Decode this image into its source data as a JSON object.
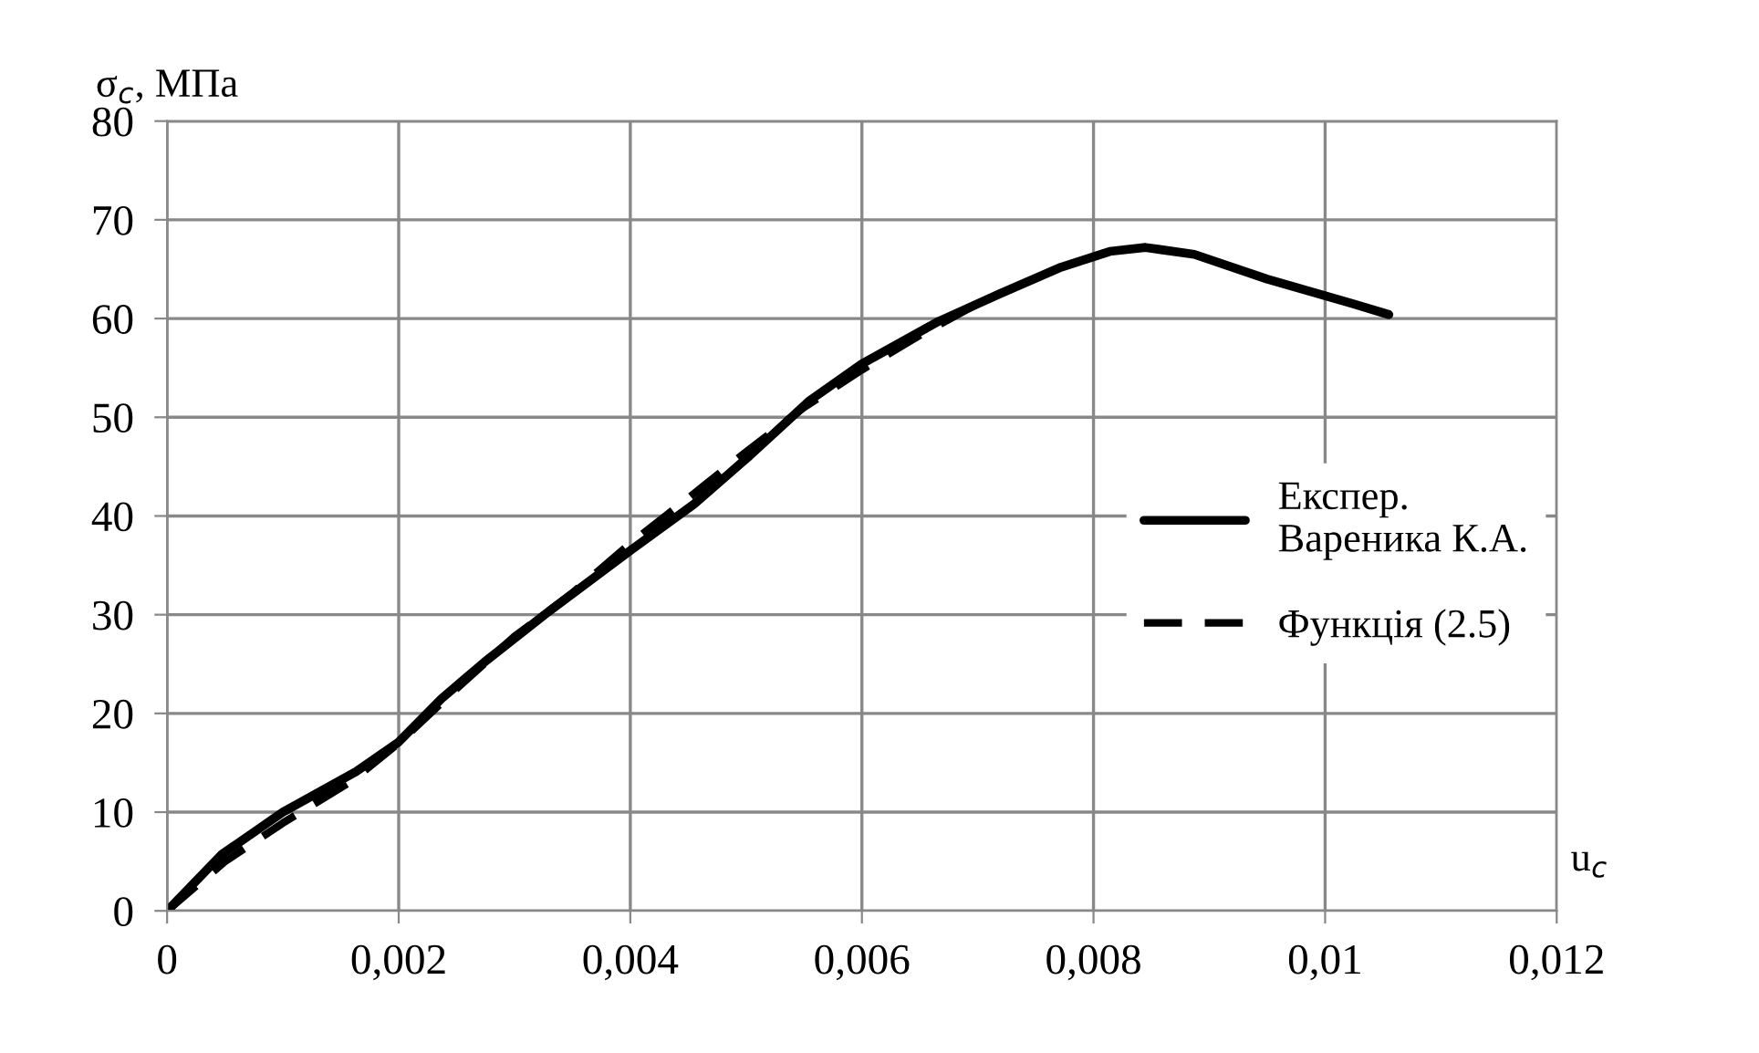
{
  "chart_data": {
    "type": "line",
    "ylabel": "σ$_{c}$, МПа",
    "xlabel": "u$_{c}$",
    "xlim": [
      0,
      0.012
    ],
    "ylim": [
      0,
      80
    ],
    "xticks": [
      0,
      {
        "value": 0.002,
        "label": "0,002"
      },
      {
        "value": 0.004,
        "label": "0,004"
      },
      {
        "value": 0.006,
        "label": "0,006"
      },
      {
        "value": 0.008,
        "label": "0,008"
      },
      {
        "value": 0.01,
        "label": "0,01"
      },
      {
        "value": 0.012,
        "label": "0,012"
      }
    ],
    "yticks": [
      0,
      10,
      20,
      30,
      40,
      50,
      60,
      70,
      80
    ],
    "grid": true,
    "legend": "right",
    "marker": "none",
    "series": [
      {
        "name": "Експер.\nВареника К.А.",
        "color": "#000000",
        "line_style": "solid",
        "x": [
          0,
          0.00047,
          0.001,
          0.00163,
          0.002,
          0.00237,
          0.00274,
          0.00326,
          0.004,
          0.00455,
          0.00503,
          0.00555,
          0.006,
          0.00666,
          0.00719,
          0.00772,
          0.00814,
          0.00845,
          0.00887,
          0.0095,
          0.01024,
          0.01055
        ],
        "values": [
          0,
          5.7,
          10.0,
          14.1,
          17.1,
          21.5,
          25.2,
          30.0,
          36.5,
          41.2,
          46.1,
          51.7,
          55.4,
          59.7,
          62.5,
          65.2,
          66.8,
          67.2,
          66.5,
          64.0,
          61.5,
          60.4
        ]
      },
      {
        "name": "Функція (2.5)",
        "color": "#000000",
        "line_style": "dashed",
        "x": [
          0,
          0.0005,
          0.001,
          0.0016,
          0.002,
          0.0025,
          0.003,
          0.0035,
          0.004,
          0.0045,
          0.005,
          0.0055,
          0.006,
          0.0065,
          0.007,
          0.0072
        ],
        "values": [
          0,
          5.0,
          8.9,
          13.2,
          17.0,
          22.5,
          27.8,
          32.2,
          37.2,
          41.8,
          46.5,
          51.0,
          54.8,
          58.3,
          61.5,
          62.6
        ]
      }
    ]
  }
}
